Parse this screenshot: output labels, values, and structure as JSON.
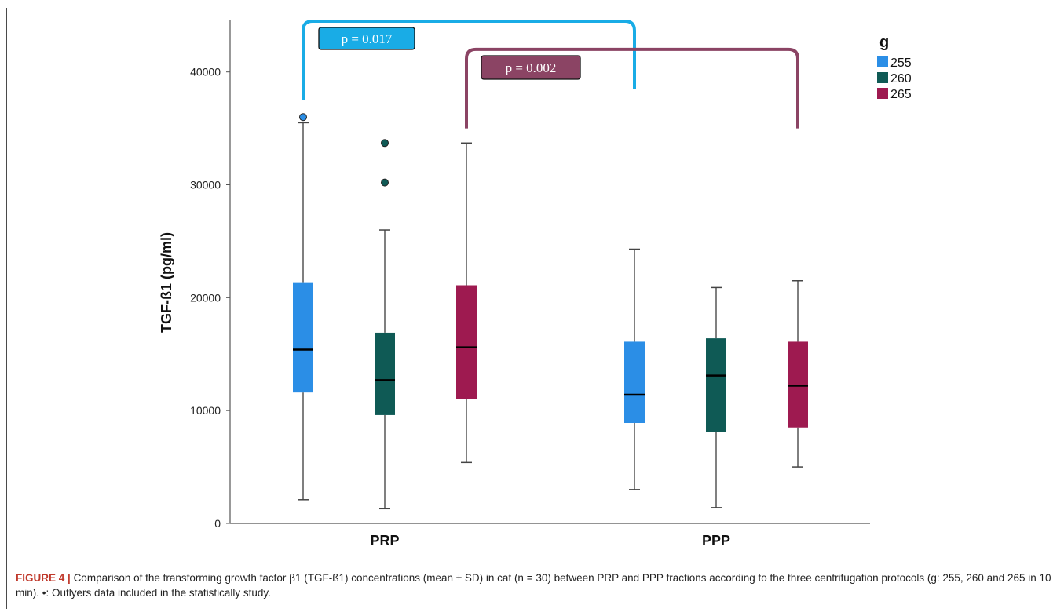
{
  "chart_data": {
    "type": "boxplot",
    "ylabel": "TGF-ß1 (pg/ml)",
    "xlabel": "",
    "ylim": [
      0,
      45000
    ],
    "yticks": [
      0,
      10000,
      20000,
      30000,
      40000
    ],
    "grid": false,
    "categories": [
      "PRP",
      "PPP"
    ],
    "legend": {
      "title": "g",
      "placement": "top-right"
    },
    "series": [
      {
        "name": "255",
        "color": "#2b8ee6",
        "boxes": [
          {
            "category": "PRP",
            "min": 2100,
            "q1": 11600,
            "median": 15400,
            "q3": 21300,
            "max": 35500,
            "outliers": [
              36000
            ]
          },
          {
            "category": "PPP",
            "min": 3000,
            "q1": 8900,
            "median": 11400,
            "q3": 16100,
            "max": 24300,
            "outliers": []
          }
        ]
      },
      {
        "name": "260",
        "color": "#0f5a55",
        "boxes": [
          {
            "category": "PRP",
            "min": 1300,
            "q1": 9600,
            "median": 12700,
            "q3": 16900,
            "max": 26000,
            "outliers": [
              30200,
              33700
            ]
          },
          {
            "category": "PPP",
            "min": 1400,
            "q1": 8100,
            "median": 13100,
            "q3": 16400,
            "max": 20900,
            "outliers": []
          }
        ]
      },
      {
        "name": "265",
        "color": "#9e1a50",
        "boxes": [
          {
            "category": "PRP",
            "min": 5400,
            "q1": 11000,
            "median": 15600,
            "q3": 21100,
            "max": 33700,
            "outliers": []
          },
          {
            "category": "PPP",
            "min": 5000,
            "q1": 8500,
            "median": 12200,
            "q3": 16100,
            "max": 21500,
            "outliers": []
          }
        ]
      }
    ],
    "annotations": [
      {
        "text": "p = 0.017",
        "from": "PRP-255",
        "to": "PPP-255",
        "color": "#19ace6",
        "bracket_top": 44500,
        "left_end": 37500,
        "right_end": 38500
      },
      {
        "text": "p = 0.002",
        "from": "PRP-265",
        "to": "PPP-265",
        "color": "#8b4464",
        "bracket_top": 42000,
        "left_end": 35000,
        "right_end": 35000
      }
    ]
  },
  "caption": {
    "figure_label": "FIGURE 4 |",
    "text": "Comparison of the transforming growth factor β1 (TGF-ß1) concentrations (mean ± SD) in cat (n = 30) between PRP and PPP fractions according to the three centrifugation protocols (g: 255, 260 and 265 in 10 min). •: Outlyers data included in the statistically study."
  }
}
